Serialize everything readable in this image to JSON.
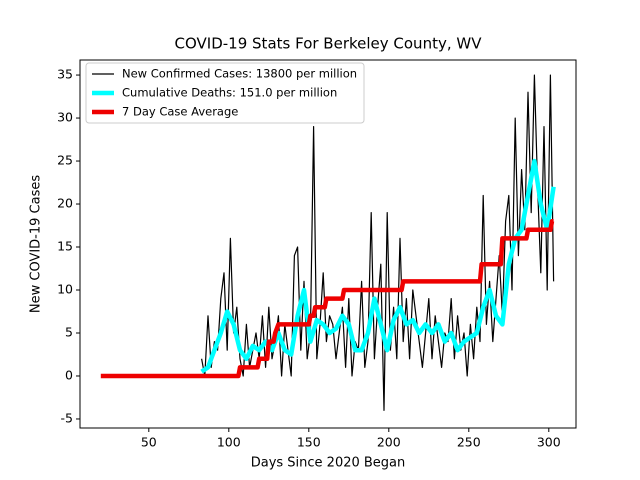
{
  "chart_data": {
    "type": "line",
    "title": "COVID-19 Stats For Berkeley County, WV",
    "x_label": "Days Since 2020 Began",
    "y_label": "New COVID-19 Cases",
    "xlim": [
      7,
      317
    ],
    "ylim": [
      -6.05,
      36.75
    ],
    "xticks": [
      50,
      100,
      150,
      200,
      250,
      300
    ],
    "yticks": [
      -5,
      0,
      5,
      10,
      15,
      20,
      25,
      30,
      35
    ],
    "grid": false,
    "legend": "upper left",
    "series": [
      {
        "name": "New Confirmed Cases: 13800 per million",
        "color": "#000000",
        "width": 1.2,
        "x": [
          83,
          85,
          87,
          89,
          91,
          93,
          95,
          97,
          99,
          101,
          103,
          105,
          107,
          109,
          111,
          113,
          115,
          117,
          119,
          121,
          123,
          125,
          127,
          129,
          131,
          133,
          135,
          137,
          139,
          141,
          143,
          145,
          147,
          149,
          151,
          153,
          155,
          157,
          159,
          161,
          163,
          165,
          167,
          169,
          171,
          173,
          175,
          177,
          179,
          181,
          183,
          185,
          187,
          189,
          191,
          193,
          195,
          197,
          199,
          201,
          203,
          205,
          207,
          209,
          211,
          213,
          215,
          217,
          219,
          221,
          223,
          225,
          227,
          229,
          231,
          233,
          235,
          237,
          239,
          241,
          243,
          245,
          247,
          249,
          251,
          253,
          255,
          257,
          259,
          261,
          263,
          265,
          267,
          269,
          271,
          273,
          275,
          277,
          279,
          281,
          283,
          285,
          287,
          289,
          291,
          293,
          295,
          297,
          299,
          301,
          303
        ],
        "values": [
          2,
          0,
          7,
          1,
          4,
          3,
          9,
          12,
          3,
          16,
          5,
          8,
          2,
          0,
          6,
          1,
          3,
          5,
          2,
          7,
          1,
          8,
          2,
          4,
          7,
          0,
          6,
          3,
          0,
          14,
          15,
          3,
          11,
          2,
          5,
          29,
          2,
          6,
          12,
          4,
          7,
          6,
          2,
          5,
          8,
          1,
          9,
          0,
          4,
          3,
          11,
          1,
          4,
          19,
          2,
          8,
          13,
          -4,
          19,
          3,
          8,
          2,
          16,
          4,
          9,
          2,
          10,
          7,
          4,
          1,
          5,
          9,
          2,
          7,
          4,
          1,
          5,
          4,
          9,
          2,
          7,
          3,
          5,
          0,
          6,
          2,
          8,
          4,
          21,
          6,
          11,
          4,
          9,
          14,
          7,
          18,
          21,
          10,
          30,
          14,
          24,
          17,
          33,
          19,
          35,
          22,
          12,
          29,
          10,
          35,
          11
        ]
      },
      {
        "name": "Cumulative Deaths: 151.0 per million",
        "color": "#00ffff",
        "width": 4.5,
        "x": [
          83,
          87,
          91,
          95,
          99,
          103,
          107,
          111,
          115,
          119,
          123,
          127,
          131,
          135,
          139,
          143,
          147,
          151,
          155,
          159,
          163,
          167,
          171,
          175,
          179,
          183,
          187,
          191,
          195,
          199,
          203,
          207,
          211,
          215,
          219,
          223,
          227,
          231,
          235,
          239,
          243,
          247,
          251,
          255,
          259,
          263,
          267,
          271,
          275,
          279,
          283,
          287,
          291,
          295,
          299,
          303
        ],
        "values": [
          0.5,
          1,
          3,
          5,
          7.5,
          6,
          3,
          2,
          3.5,
          3,
          4,
          3,
          5,
          3,
          2.5,
          7,
          10,
          4,
          6.5,
          6,
          5,
          5.5,
          7,
          6,
          3,
          3,
          5,
          9,
          6,
          3,
          6.5,
          8,
          6,
          6.5,
          5,
          6,
          5,
          6,
          4,
          5,
          3,
          4,
          4.5,
          5,
          8,
          10,
          7,
          6,
          13,
          16,
          17,
          21,
          25,
          20,
          17,
          22
        ]
      },
      {
        "name": "7 Day Case Average",
        "color": "#ee0000",
        "width": 4.5,
        "x": [
          20,
          106,
          107,
          118,
          119,
          124,
          125,
          128,
          129,
          131,
          132,
          150,
          151,
          153,
          154,
          160,
          161,
          171,
          172,
          208,
          209,
          257,
          258,
          270,
          271,
          286,
          287,
          301,
          302,
          303
        ],
        "values": [
          0,
          0,
          1,
          1,
          2,
          2,
          4,
          4,
          5,
          6,
          6,
          6,
          7,
          7,
          8,
          8,
          9,
          9,
          10,
          10,
          11,
          11,
          13,
          13,
          16,
          16,
          17,
          17,
          18,
          18
        ]
      }
    ]
  }
}
